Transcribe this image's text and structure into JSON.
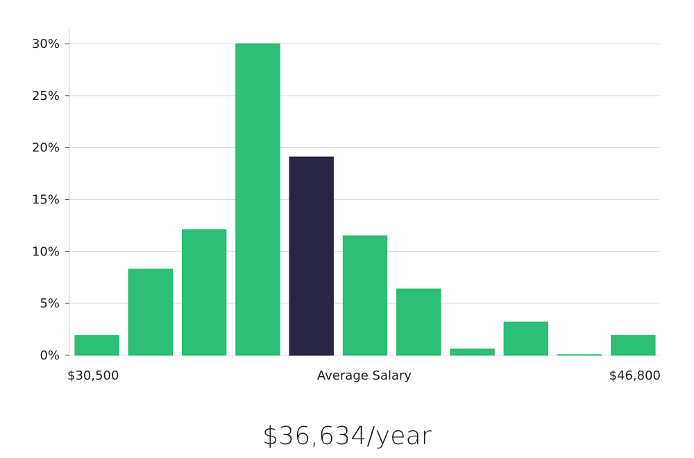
{
  "chart_data": {
    "type": "bar",
    "title": "",
    "xlabel": "Average Salary",
    "ylabel": "",
    "x_range_labels": {
      "min": "$30,500",
      "max": "$46,800"
    },
    "ylim": [
      0,
      30
    ],
    "yticks": [
      0,
      5,
      10,
      15,
      20,
      25,
      30
    ],
    "ytick_labels": [
      "0%",
      "5%",
      "10%",
      "15%",
      "20%",
      "25%",
      "30%"
    ],
    "values": [
      1.9,
      8.3,
      12.1,
      30.0,
      19.1,
      11.5,
      6.4,
      0.6,
      3.2,
      0.05,
      1.9
    ],
    "highlight_index": 4,
    "grid": true,
    "colors": {
      "bar": "#2bbf77",
      "highlight": "#272445",
      "grid": "#dcdcdc",
      "axis": "#d0d0d0"
    }
  },
  "salary": {
    "headline": "$36,634/year"
  }
}
